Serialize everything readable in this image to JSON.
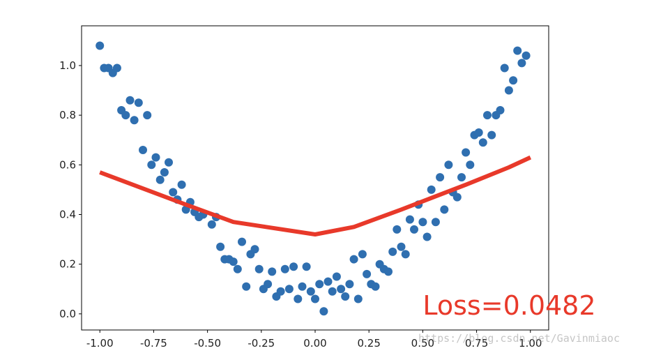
{
  "chart_data": {
    "type": "scatter",
    "title": "",
    "xlabel": "",
    "ylabel": "",
    "xlim": [
      -1.085,
      1.085
    ],
    "ylim": [
      -0.065,
      1.16
    ],
    "grid": false,
    "x_ticks": [
      -1.0,
      -0.75,
      -0.5,
      -0.25,
      0.0,
      0.25,
      0.5,
      0.75,
      1.0
    ],
    "x_tick_labels": [
      "-1.00",
      "-0.75",
      "-0.50",
      "-0.25",
      "0.00",
      "0.25",
      "0.50",
      "0.75",
      "1.00"
    ],
    "y_ticks": [
      0.0,
      0.2,
      0.4,
      0.6,
      0.8,
      1.0
    ],
    "y_tick_labels": [
      "0.0",
      "0.2",
      "0.4",
      "0.6",
      "0.8",
      "1.0"
    ],
    "series": [
      {
        "kind": "scatter",
        "color": "#2f6fb0",
        "points": [
          [
            -1.0,
            1.08
          ],
          [
            -0.98,
            0.99
          ],
          [
            -0.96,
            0.99
          ],
          [
            -0.94,
            0.97
          ],
          [
            -0.92,
            0.99
          ],
          [
            -0.9,
            0.82
          ],
          [
            -0.88,
            0.8
          ],
          [
            -0.86,
            0.86
          ],
          [
            -0.84,
            0.78
          ],
          [
            -0.82,
            0.85
          ],
          [
            -0.8,
            0.66
          ],
          [
            -0.78,
            0.8
          ],
          [
            -0.76,
            0.6
          ],
          [
            -0.74,
            0.63
          ],
          [
            -0.72,
            0.54
          ],
          [
            -0.7,
            0.57
          ],
          [
            -0.68,
            0.61
          ],
          [
            -0.66,
            0.49
          ],
          [
            -0.64,
            0.46
          ],
          [
            -0.62,
            0.52
          ],
          [
            -0.6,
            0.42
          ],
          [
            -0.58,
            0.45
          ],
          [
            -0.56,
            0.41
          ],
          [
            -0.54,
            0.39
          ],
          [
            -0.52,
            0.4
          ],
          [
            -0.48,
            0.36
          ],
          [
            -0.46,
            0.39
          ],
          [
            -0.44,
            0.27
          ],
          [
            -0.42,
            0.22
          ],
          [
            -0.4,
            0.22
          ],
          [
            -0.38,
            0.21
          ],
          [
            -0.36,
            0.18
          ],
          [
            -0.34,
            0.29
          ],
          [
            -0.32,
            0.11
          ],
          [
            -0.3,
            0.24
          ],
          [
            -0.28,
            0.26
          ],
          [
            -0.26,
            0.18
          ],
          [
            -0.24,
            0.1
          ],
          [
            -0.22,
            0.12
          ],
          [
            -0.2,
            0.17
          ],
          [
            -0.18,
            0.07
          ],
          [
            -0.16,
            0.09
          ],
          [
            -0.14,
            0.18
          ],
          [
            -0.12,
            0.1
          ],
          [
            -0.1,
            0.19
          ],
          [
            -0.08,
            0.06
          ],
          [
            -0.06,
            0.11
          ],
          [
            -0.04,
            0.19
          ],
          [
            -0.02,
            0.09
          ],
          [
            0.0,
            0.06
          ],
          [
            0.02,
            0.12
          ],
          [
            0.04,
            0.01
          ],
          [
            0.06,
            0.13
          ],
          [
            0.08,
            0.09
          ],
          [
            0.1,
            0.15
          ],
          [
            0.12,
            0.1
          ],
          [
            0.14,
            0.07
          ],
          [
            0.16,
            0.12
          ],
          [
            0.18,
            0.22
          ],
          [
            0.2,
            0.06
          ],
          [
            0.22,
            0.24
          ],
          [
            0.24,
            0.16
          ],
          [
            0.26,
            0.12
          ],
          [
            0.28,
            0.11
          ],
          [
            0.3,
            0.2
          ],
          [
            0.32,
            0.18
          ],
          [
            0.34,
            0.17
          ],
          [
            0.36,
            0.25
          ],
          [
            0.38,
            0.34
          ],
          [
            0.4,
            0.27
          ],
          [
            0.42,
            0.24
          ],
          [
            0.44,
            0.38
          ],
          [
            0.46,
            0.34
          ],
          [
            0.48,
            0.44
          ],
          [
            0.5,
            0.37
          ],
          [
            0.52,
            0.31
          ],
          [
            0.54,
            0.5
          ],
          [
            0.56,
            0.37
          ],
          [
            0.58,
            0.55
          ],
          [
            0.6,
            0.42
          ],
          [
            0.62,
            0.6
          ],
          [
            0.64,
            0.49
          ],
          [
            0.66,
            0.47
          ],
          [
            0.68,
            0.55
          ],
          [
            0.7,
            0.65
          ],
          [
            0.72,
            0.6
          ],
          [
            0.74,
            0.72
          ],
          [
            0.76,
            0.73
          ],
          [
            0.78,
            0.69
          ],
          [
            0.8,
            0.8
          ],
          [
            0.82,
            0.72
          ],
          [
            0.84,
            0.8
          ],
          [
            0.86,
            0.82
          ],
          [
            0.88,
            0.99
          ],
          [
            0.9,
            0.9
          ],
          [
            0.92,
            0.94
          ],
          [
            0.94,
            1.06
          ],
          [
            0.96,
            1.01
          ],
          [
            0.98,
            1.04
          ]
        ]
      },
      {
        "kind": "line",
        "color": "#e8392a",
        "points": [
          [
            -1.0,
            0.57
          ],
          [
            -0.6,
            0.44
          ],
          [
            -0.38,
            0.37
          ],
          [
            0.0,
            0.32
          ],
          [
            0.18,
            0.35
          ],
          [
            0.4,
            0.42
          ],
          [
            0.7,
            0.52
          ],
          [
            0.9,
            0.59
          ],
          [
            1.0,
            0.63
          ]
        ]
      }
    ],
    "annotations": [
      {
        "text": "Loss=0.0482",
        "x": 0.5,
        "y": 0.0,
        "color": "#e8392a"
      }
    ]
  },
  "watermark": "https://blog.csdn.net/Gavinmiaoc"
}
